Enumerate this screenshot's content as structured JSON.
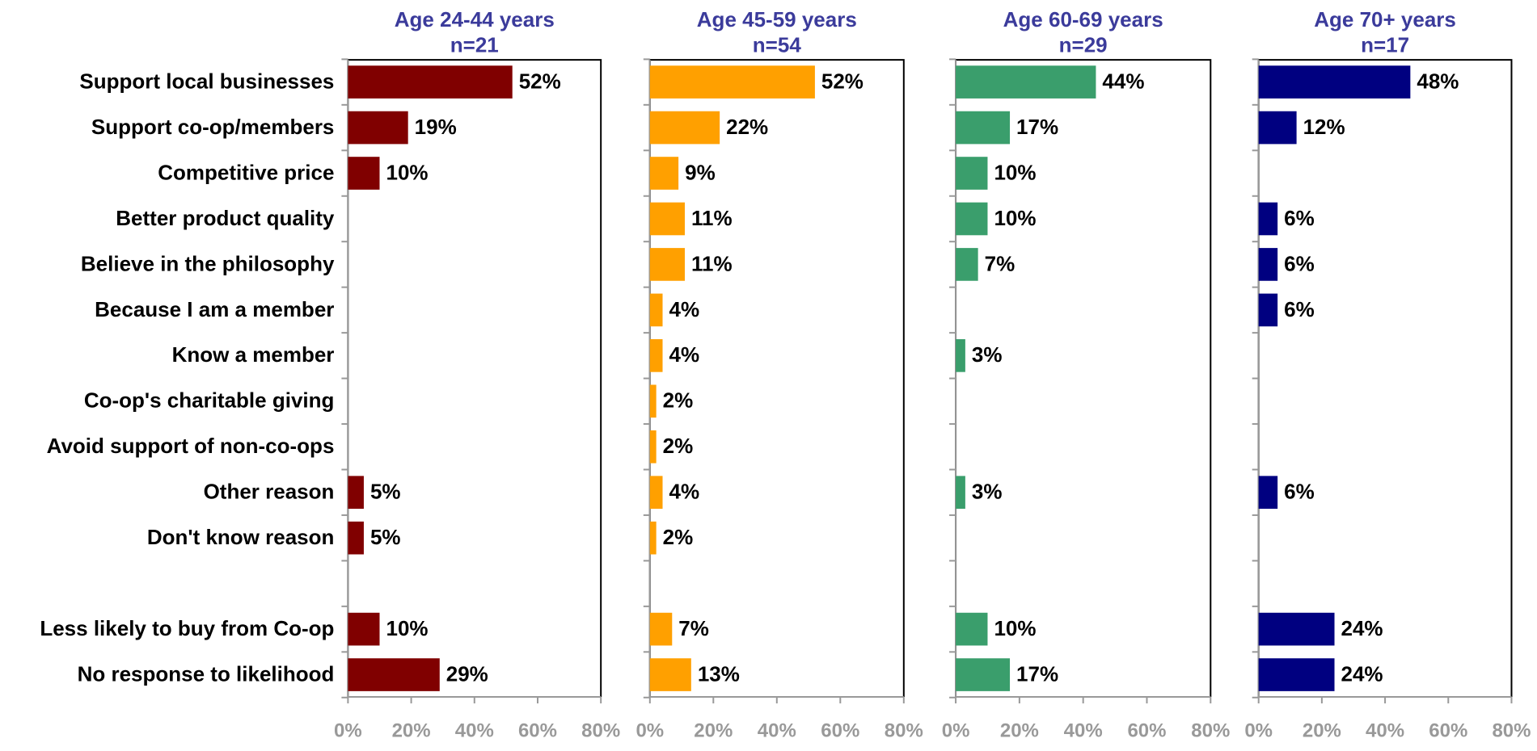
{
  "categories": [
    "Support local businesses",
    "Support co-op/members",
    "Competitive price",
    "Better product quality",
    "Believe in the philosophy",
    "Because I am a member",
    "Know a member",
    "Co-op's charitable giving",
    "Avoid support of non-co-ops",
    "Other reason",
    "Don't know reason",
    null,
    "Less likely to buy from Co-op",
    "No response to likelihood"
  ],
  "chart_data": [
    {
      "type": "bar",
      "title": "Age 24-44 years",
      "subtitle": "n=21",
      "color": "#800000",
      "values": [
        52,
        19,
        10,
        null,
        null,
        null,
        null,
        null,
        null,
        5,
        5,
        null,
        10,
        29
      ],
      "value_labels": [
        "52%",
        "19%",
        "10%",
        null,
        null,
        null,
        null,
        null,
        null,
        "5%",
        "5%",
        null,
        "10%",
        "29%"
      ],
      "xlim": [
        0,
        80
      ],
      "xticks": [
        {
          "value": 0,
          "label": "0%"
        },
        {
          "value": 20,
          "label": "20%"
        },
        {
          "value": 40,
          "label": "40%"
        },
        {
          "value": 60,
          "label": "60%"
        },
        {
          "value": 80,
          "label": "80%"
        }
      ]
    },
    {
      "type": "bar",
      "title": "Age 45-59 years",
      "subtitle": "n=54",
      "color": "#ffa000",
      "values": [
        52,
        22,
        9,
        11,
        11,
        4,
        4,
        2,
        2,
        4,
        2,
        null,
        7,
        13
      ],
      "value_labels": [
        "52%",
        "22%",
        "9%",
        "11%",
        "11%",
        "4%",
        "4%",
        "2%",
        "2%",
        "4%",
        "2%",
        null,
        "7%",
        "13%"
      ],
      "xlim": [
        0,
        80
      ],
      "xticks": [
        {
          "value": 0,
          "label": "0%"
        },
        {
          "value": 20,
          "label": "20%"
        },
        {
          "value": 40,
          "label": "40%"
        },
        {
          "value": 60,
          "label": "60%"
        },
        {
          "value": 80,
          "label": "80%"
        }
      ]
    },
    {
      "type": "bar",
      "title": "Age 60-69 years",
      "subtitle": "n=29",
      "color": "#3a9e6c",
      "values": [
        44,
        17,
        10,
        10,
        7,
        null,
        3,
        null,
        null,
        3,
        null,
        null,
        10,
        17
      ],
      "value_labels": [
        "44%",
        "17%",
        "10%",
        "10%",
        "7%",
        null,
        "3%",
        null,
        null,
        "3%",
        null,
        null,
        "10%",
        "17%"
      ],
      "xlim": [
        0,
        80
      ],
      "xticks": [
        {
          "value": 0,
          "label": "0%"
        },
        {
          "value": 20,
          "label": "20%"
        },
        {
          "value": 40,
          "label": "40%"
        },
        {
          "value": 60,
          "label": "60%"
        },
        {
          "value": 80,
          "label": "80%"
        }
      ]
    },
    {
      "type": "bar",
      "title": "Age 70+ years",
      "subtitle": "n=17",
      "color": "#000080",
      "values": [
        48,
        12,
        null,
        6,
        6,
        6,
        null,
        null,
        null,
        6,
        null,
        null,
        24,
        24
      ],
      "value_labels": [
        "48%",
        "12%",
        null,
        "6%",
        "6%",
        "6%",
        null,
        null,
        null,
        "6%",
        null,
        null,
        "24%",
        "24%"
      ],
      "xlim": [
        0,
        80
      ],
      "xticks": [
        {
          "value": 0,
          "label": "0%"
        },
        {
          "value": 20,
          "label": "20%"
        },
        {
          "value": 40,
          "label": "40%"
        },
        {
          "value": 60,
          "label": "60%"
        },
        {
          "value": 80,
          "label": "80%"
        }
      ]
    }
  ]
}
